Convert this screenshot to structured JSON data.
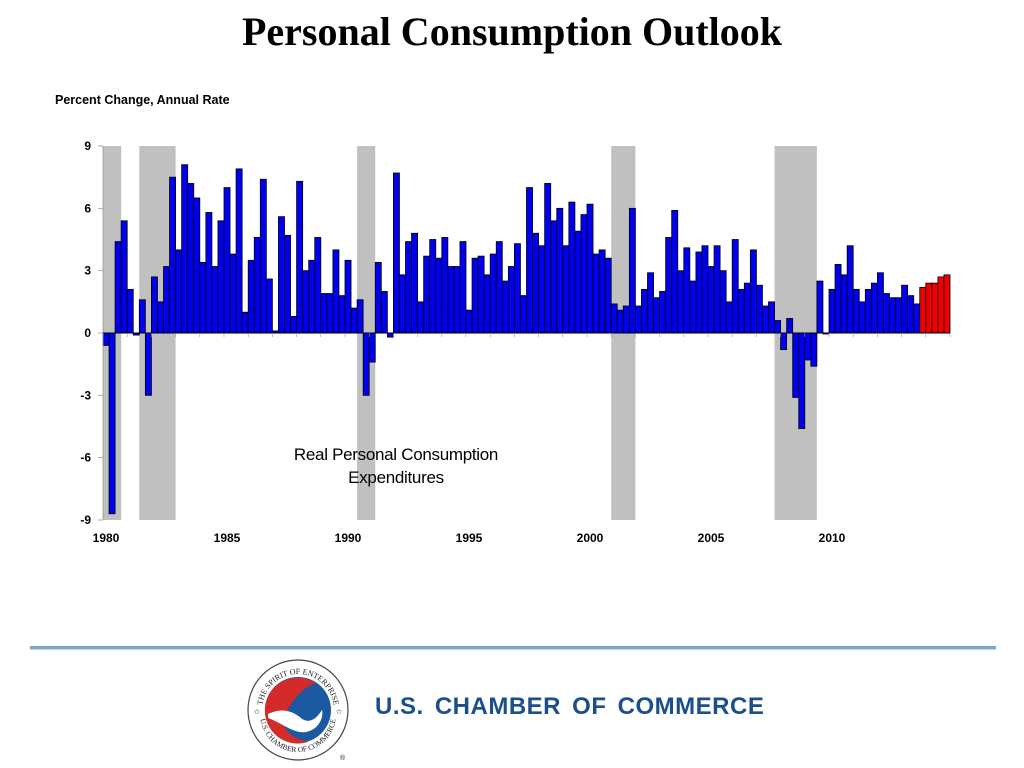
{
  "page": {
    "title": "Personal Consumption Outlook",
    "footer_org": "U.S. CHAMBER OF COMMERCE",
    "logo": {
      "name": "us-chamber-seal",
      "ring_text_top": "THE SPIRIT OF ENTERPRISE",
      "ring_text_bottom": "U.S. CHAMBER OF COMMERCE",
      "registered_mark": "®"
    }
  },
  "colors": {
    "actual_bar": "#0000ee",
    "forecast_bar": "#ee0000",
    "recession_band": "#c0c0c0",
    "brand_blue": "#1b4f8a",
    "rule": "#7aa7c7"
  },
  "chart_data": {
    "type": "bar",
    "title": "Personal Consumption Outlook",
    "ylabel": "Percent Change, Annual Rate",
    "xlabel": "",
    "annotation": [
      "Real Personal Consumption",
      "Expenditures"
    ],
    "ylim": [
      -9,
      9
    ],
    "yticks": [
      9,
      6,
      3,
      0,
      -3,
      -6,
      -9
    ],
    "x_start": "1980Q1",
    "frequency": "quarterly",
    "xticks": [
      {
        "label": "1980",
        "quarter_index": 0
      },
      {
        "label": "1985",
        "quarter_index": 20
      },
      {
        "label": "1990",
        "quarter_index": 40
      },
      {
        "label": "1995",
        "quarter_index": 60
      },
      {
        "label": "2000",
        "quarter_index": 80
      },
      {
        "label": "2005",
        "quarter_index": 100
      },
      {
        "label": "2010",
        "quarter_index": 120
      }
    ],
    "recessions": [
      {
        "start_index": 0,
        "end_index": 2
      },
      {
        "start_index": 6,
        "end_index": 11
      },
      {
        "start_index": 42,
        "end_index": 44
      },
      {
        "start_index": 84,
        "end_index": 87
      },
      {
        "start_index": 111,
        "end_index": 117
      }
    ],
    "grid": false,
    "legend": "none",
    "series": [
      {
        "name": "Actual",
        "color": "#0000ee",
        "values": [
          -0.6,
          -8.7,
          4.4,
          5.4,
          2.1,
          -0.1,
          1.6,
          -3.0,
          2.7,
          1.5,
          3.2,
          7.5,
          4.0,
          8.1,
          7.2,
          6.5,
          3.4,
          5.8,
          3.2,
          5.4,
          7.0,
          3.8,
          7.9,
          1.0,
          3.5,
          4.6,
          7.4,
          2.6,
          0.1,
          5.6,
          4.7,
          0.8,
          7.3,
          3.0,
          3.5,
          4.6,
          1.9,
          1.9,
          4.0,
          1.8,
          3.5,
          1.2,
          1.6,
          -3.0,
          -1.4,
          3.4,
          2.0,
          -0.2,
          7.7,
          2.8,
          4.4,
          4.8,
          1.5,
          3.7,
          4.5,
          3.6,
          4.6,
          3.2,
          3.2,
          4.4,
          1.1,
          3.6,
          3.7,
          2.8,
          3.8,
          4.4,
          2.5,
          3.2,
          4.3,
          1.8,
          7.0,
          4.8,
          4.2,
          7.2,
          5.4,
          6.0,
          4.2,
          6.3,
          4.9,
          5.7,
          6.2,
          3.8,
          4.0,
          3.6,
          1.4,
          1.1,
          1.3,
          6.0,
          1.3,
          2.1,
          2.9,
          1.7,
          2.0,
          4.6,
          5.9,
          3.0,
          4.1,
          2.5,
          3.9,
          4.2,
          3.2,
          4.2,
          3.0,
          1.5,
          4.5,
          2.1,
          2.4,
          4.0,
          2.3,
          1.3,
          1.5,
          0.6,
          -0.8,
          0.7,
          -3.1,
          -4.6,
          -1.3,
          -1.6,
          2.5,
          0.0,
          2.1,
          3.3,
          2.8,
          4.2,
          2.1,
          1.5,
          2.1,
          2.4,
          2.9,
          1.9,
          1.7,
          1.7,
          2.3,
          1.8,
          1.4
        ]
      },
      {
        "name": "Forecast",
        "color": "#ee0000",
        "values": [
          2.2,
          2.4,
          2.4,
          2.7,
          2.8
        ]
      }
    ]
  }
}
